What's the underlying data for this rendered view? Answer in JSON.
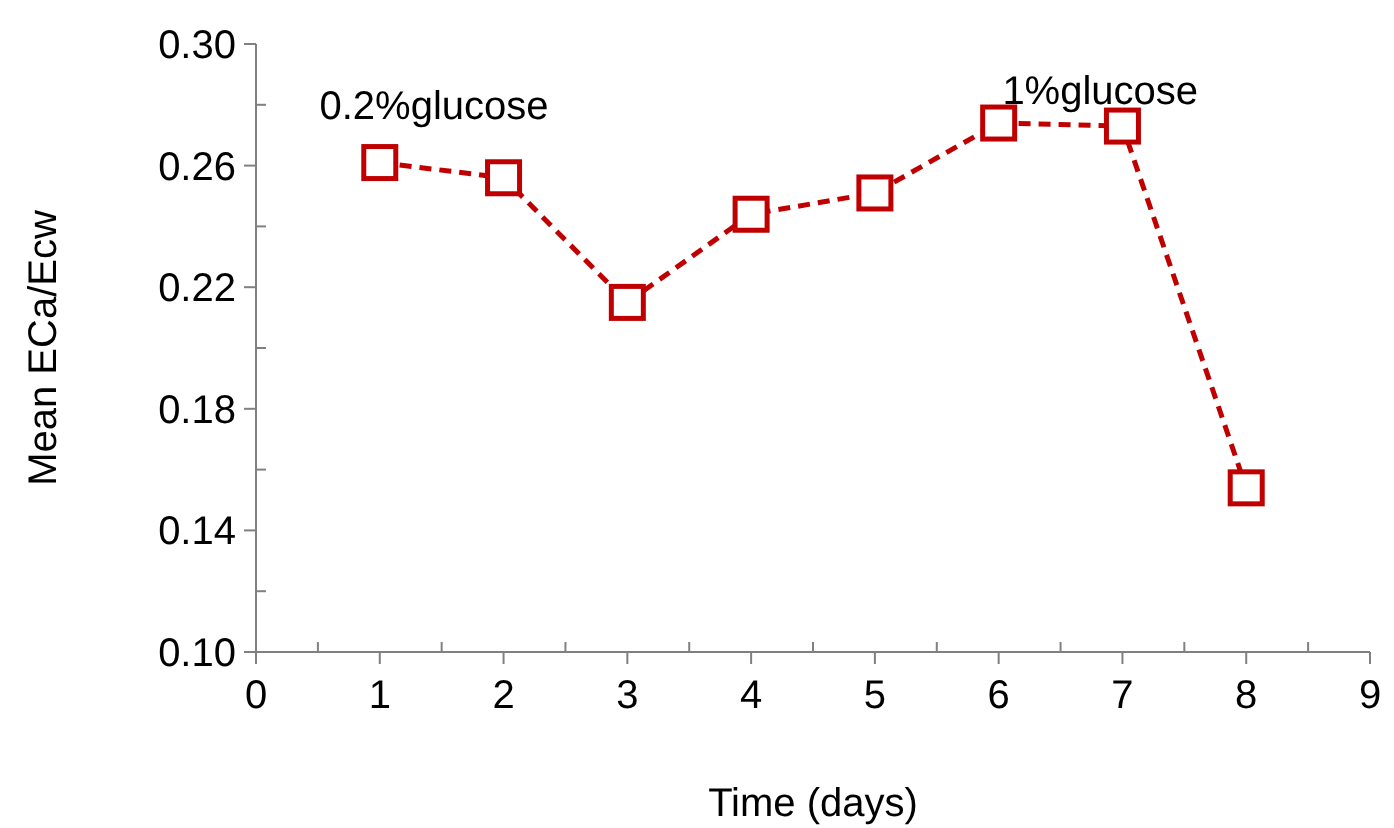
{
  "chart_data": {
    "type": "line",
    "xlabel": "Time (days)",
    "ylabel": "Mean ECa/Ecw",
    "x": [
      1,
      2,
      3,
      4,
      5,
      6,
      7,
      8
    ],
    "series": [
      {
        "color": "#c00000",
        "values": [
          0.261,
          0.256,
          0.215,
          0.244,
          0.251,
          0.274,
          0.273,
          0.154
        ]
      }
    ],
    "xlim": [
      0,
      9
    ],
    "xticks": [
      0,
      {
        "value": 0.5,
        "label": null
      },
      1,
      {
        "value": 1.5,
        "label": null
      },
      2,
      {
        "value": 2.5,
        "label": null
      },
      3,
      {
        "value": 3.5,
        "label": null
      },
      4,
      {
        "value": 4.5,
        "label": null
      },
      5,
      {
        "value": 5.5,
        "label": null
      },
      6,
      {
        "value": 6.5,
        "label": null
      },
      7,
      {
        "value": 7.5,
        "label": null
      },
      8,
      {
        "value": 8.5,
        "label": null
      },
      9
    ],
    "ylim": [
      0.1,
      0.3
    ],
    "yticks": [
      {
        "value": 0.1,
        "label": "0.10"
      },
      {
        "value": 0.12,
        "label": null
      },
      {
        "value": 0.14,
        "label": "0.14"
      },
      {
        "value": 0.16,
        "label": null
      },
      {
        "value": 0.18,
        "label": "0.18"
      },
      {
        "value": 0.2,
        "label": null
      },
      {
        "value": 0.22,
        "label": "0.22"
      },
      {
        "value": 0.24,
        "label": null
      },
      {
        "value": 0.26,
        "label": "0.26"
      },
      {
        "value": 0.28,
        "label": null
      },
      {
        "value": 0.3,
        "label": "0.30"
      }
    ],
    "annotations": [
      "0.2%glucose",
      "1%glucose"
    ],
    "marker": "square",
    "line_style": "dashed",
    "grid": false
  }
}
